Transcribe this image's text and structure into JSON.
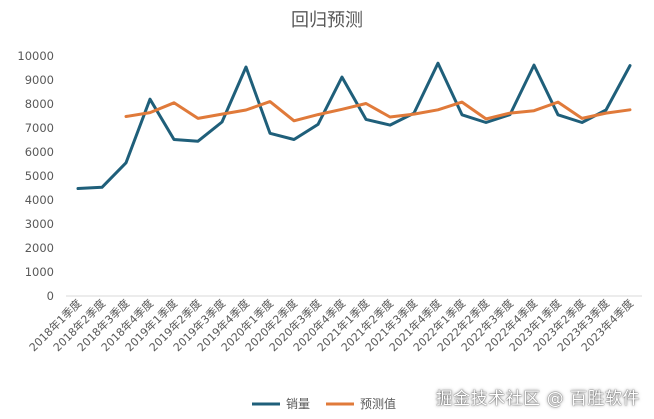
{
  "chart_data": {
    "type": "line",
    "title": "回归预测",
    "categories": [
      "2018年1季度",
      "2018年2季度",
      "2018年3季度",
      "2018年4季度",
      "2019年1季度",
      "2019年2季度",
      "2019年3季度",
      "2019年4季度",
      "2020年1季度",
      "2020年2季度",
      "2020年3季度",
      "2020年4季度",
      "2021年1季度",
      "2021年2季度",
      "2021年3季度",
      "2021年4季度",
      "2022年1季度",
      "2022年2季度",
      "2022年3季度",
      "2022年4季度",
      "2023年1季度",
      "2023年2季度",
      "2023年3季度",
      "2023年4季度"
    ],
    "series": [
      {
        "name": "销量",
        "color": "#1f5f7a",
        "values": [
          4480,
          4530,
          5550,
          8200,
          6520,
          6450,
          7250,
          9540,
          6780,
          6520,
          7150,
          9120,
          7360,
          7120,
          7620,
          9700,
          7550,
          7230,
          7560,
          9620,
          7550,
          7230,
          7750,
          9600
        ]
      },
      {
        "name": "预测值",
        "color": "#e07a3a",
        "values": [
          null,
          null,
          7480,
          7640,
          8050,
          7400,
          7580,
          7750,
          8100,
          7300,
          7560,
          7780,
          8020,
          7460,
          7580,
          7760,
          8080,
          7380,
          7620,
          7720,
          8080,
          7400,
          7620,
          7760
        ]
      }
    ],
    "y_ticks": [
      "0",
      "1000",
      "2000",
      "3000",
      "4000",
      "5000",
      "6000",
      "7000",
      "8000",
      "9000",
      "10000"
    ],
    "ylim": [
      0,
      10000
    ],
    "grid": false,
    "legend_position": "bottom"
  },
  "watermark": "掘金技术社区 @ 百胜软件"
}
